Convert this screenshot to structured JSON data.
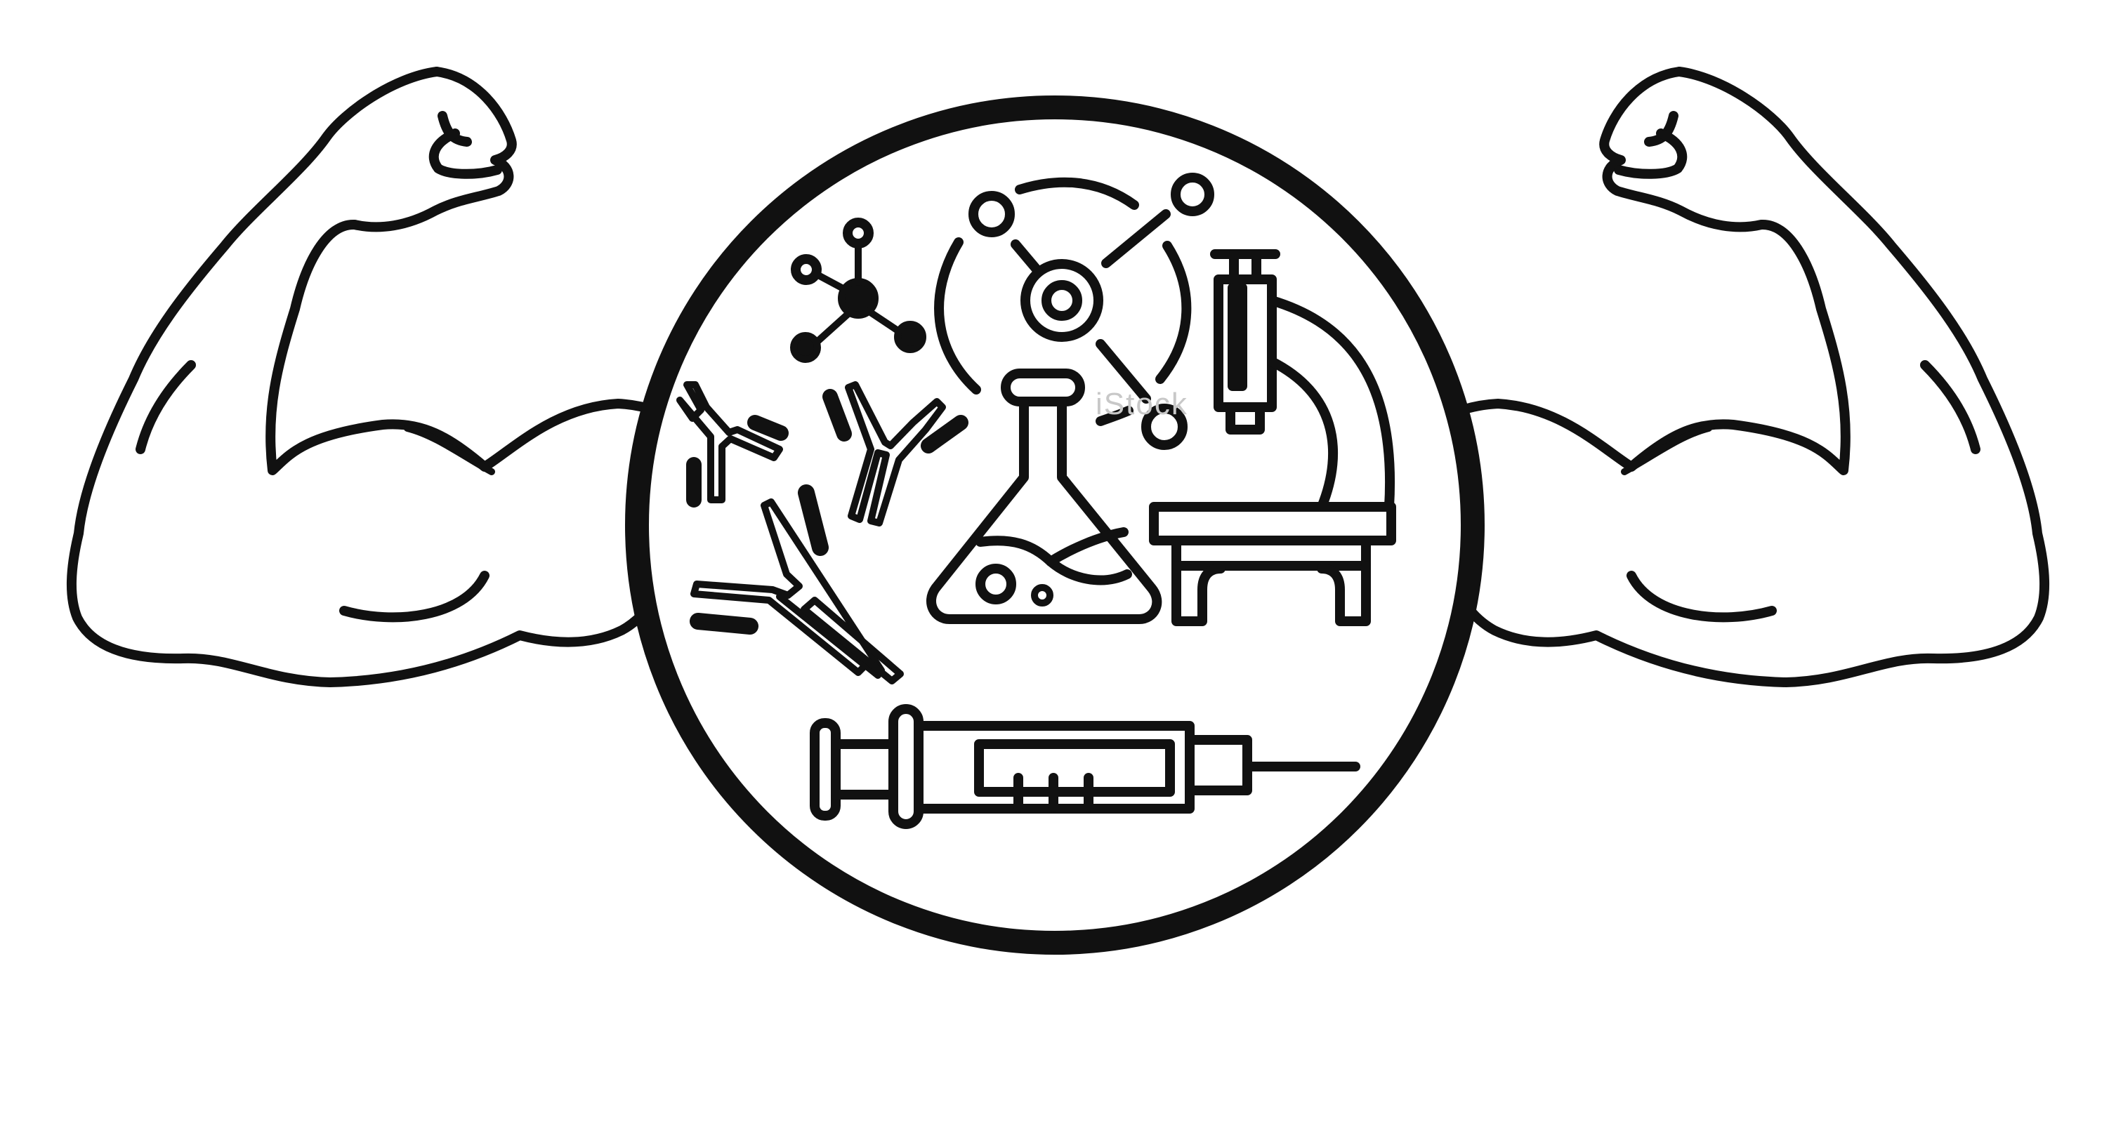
{
  "illustration": {
    "subject": "flexed-arms-around-science-circle",
    "line_color": "#111111",
    "background_color": "#ffffff",
    "watermark_color": "#c8c8c8",
    "watermark_text": "iStock"
  },
  "icons": [
    "flexed-arm-left-icon",
    "flexed-arm-right-icon",
    "science-circle-icon",
    "molecule-icon",
    "atom-icon",
    "antibody-icon",
    "bacteria-icon",
    "flask-icon",
    "microscope-icon",
    "syringe-icon"
  ]
}
